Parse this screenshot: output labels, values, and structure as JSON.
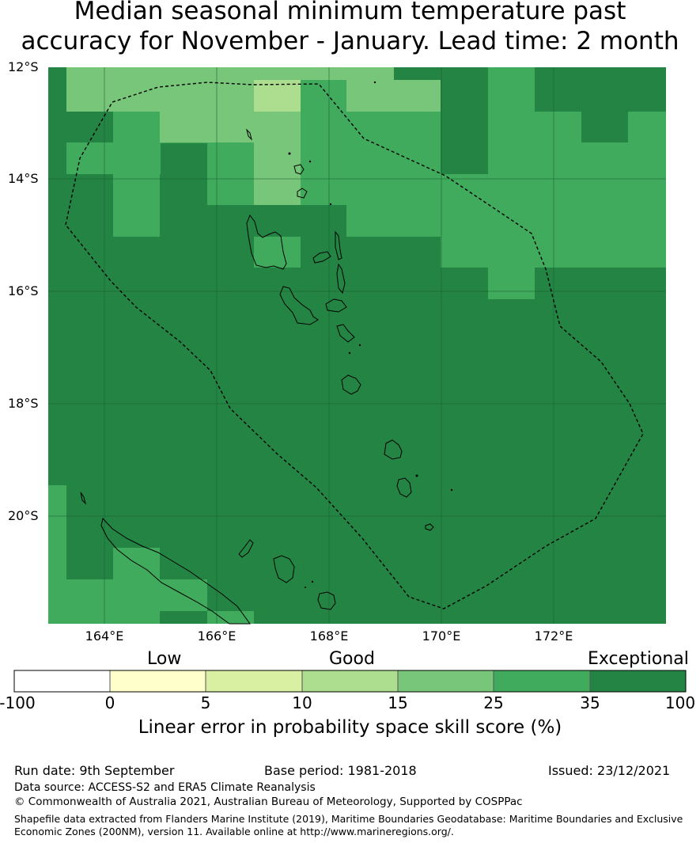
{
  "title": {
    "line1": "Median seasonal minimum temperature past",
    "line2": "accuracy for November - January. Lead time: 2 month"
  },
  "map": {
    "lat_labels": [
      "12°S",
      "14°S",
      "16°S",
      "18°S",
      "20°S"
    ],
    "lon_labels": [
      "164°E",
      "166°E",
      "168°E",
      "170°E",
      "172°E"
    ],
    "legend_colors": {
      "cat_100_0": "#ffffff",
      "cat_0_5": "#ffffcc",
      "cat_5_10": "#d9f0a3",
      "cat_10_15": "#addd8e",
      "cat_15_25": "#78c679",
      "cat_25_35": "#41ab5d",
      "cat_35_100": "#238443"
    }
  },
  "colorbar": {
    "category_labels": {
      "low": "Low",
      "good": "Good",
      "exceptional": "Exceptional"
    },
    "ticks": [
      "-100",
      "0",
      "5",
      "10",
      "15",
      "25",
      "35",
      "100"
    ],
    "caption": "Linear error in probability space skill score (%)"
  },
  "footer": {
    "run_date": "Run date: 9th September",
    "base_period": "Base period: 1981-2018",
    "issued": "Issued: 23/12/2021",
    "data_source": "Data source: ACCESS-S2 and ERA5 Climate Reanalysis",
    "copyright": "© Commonwealth of Australia 2021, Australian Bureau of Meteorology, Supported by COSPPac",
    "shapefile_line1": "Shapefile data extracted from Flanders Marine Institute (2019), Maritime Boundaries Geodatabase: Maritime Boundaries and Exclusive",
    "shapefile_line2": "Economic Zones (200NM), version 11. Available online at http://www.marineregions.org/."
  }
}
